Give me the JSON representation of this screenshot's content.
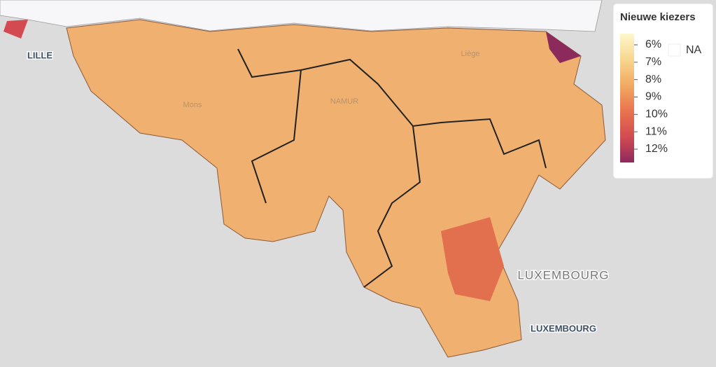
{
  "map": {
    "labels": {
      "lille": "LILLE",
      "mons": "Mons",
      "namur": "NAMUR",
      "liege": "Liège",
      "country": "LUXEMBOURG",
      "city": "LUXEMBOURG"
    }
  },
  "legend": {
    "title": "Nieuwe kiezers",
    "ticks": [
      {
        "value": 6,
        "label": "6%"
      },
      {
        "value": 7,
        "label": "7%"
      },
      {
        "value": 8,
        "label": "8%"
      },
      {
        "value": 9,
        "label": "9%"
      },
      {
        "value": 10,
        "label": "10%"
      },
      {
        "value": 11,
        "label": "11%"
      },
      {
        "value": 12,
        "label": "12%"
      }
    ],
    "colors": [
      "#fdf7cc",
      "#f8d68e",
      "#f1aa62",
      "#e8744f",
      "#d34b51",
      "#8c2a5c"
    ],
    "na_label": "NA"
  }
}
